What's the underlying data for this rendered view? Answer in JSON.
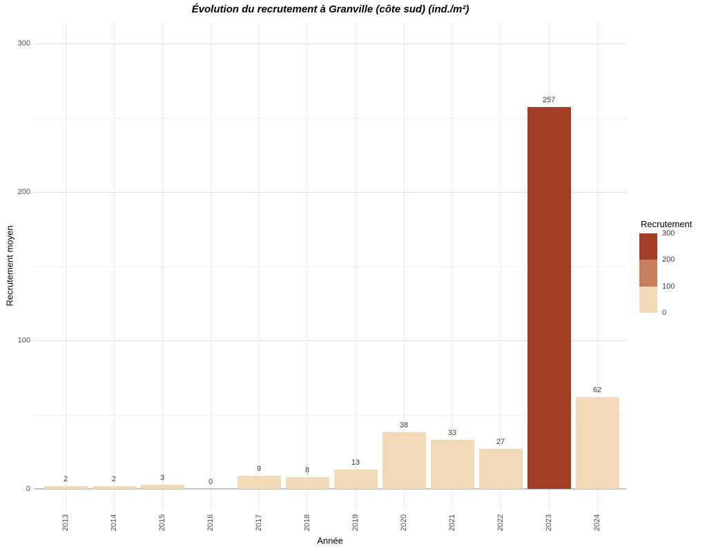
{
  "chart_data": {
    "type": "bar",
    "title": "Évolution du recrutement à Granville (côte sud) (ind./m²)",
    "xlabel": "Année",
    "ylabel": "Recrutement moyen",
    "categories": [
      "2013",
      "2014",
      "2015",
      "2016",
      "2017",
      "2018",
      "2019",
      "2020",
      "2021",
      "2022",
      "2023",
      "2024"
    ],
    "values": [
      2,
      2,
      3,
      0,
      9,
      8,
      13,
      38,
      33,
      27,
      257,
      62
    ],
    "bar_value_labels": [
      "2",
      "2",
      "3",
      "0",
      "9",
      "8",
      "13",
      "38",
      "33",
      "27",
      "257",
      "62"
    ],
    "ylim": [
      0,
      300
    ],
    "yticks": [
      0,
      100,
      200,
      300
    ],
    "ytick_labels": [
      "0",
      "100",
      "200",
      "300"
    ],
    "minor_yticks": [
      50,
      150,
      250
    ],
    "grid": "major+minor, horizontal and vertical, light gray on white",
    "legend": {
      "title": "Recrutement",
      "position": "right",
      "style": "binned-colorbar",
      "tick_labels": [
        "300",
        "200",
        "100",
        "0"
      ],
      "bins": [
        {
          "min": 200,
          "max": 300,
          "color": "#A23E23"
        },
        {
          "min": 100,
          "max": 200,
          "color": "#C67E5B"
        },
        {
          "min": 0,
          "max": 100,
          "color": "#F2DAB8"
        }
      ]
    },
    "colors": {
      "bin_low": "#F2DAB8",
      "bin_mid": "#C67E5B",
      "bin_high": "#A23E23"
    }
  },
  "style": {
    "background": "#FFFFFF",
    "grid_major": "#DDDDDD",
    "grid_minor": "#EFEFEF",
    "grid_vertical": "#E9E9E9",
    "axis_line": "#C2C2C2",
    "axis_tick_label_color": "#4D4D4D",
    "value_label_color": "#3C3C3C",
    "title_color": "#000000"
  }
}
